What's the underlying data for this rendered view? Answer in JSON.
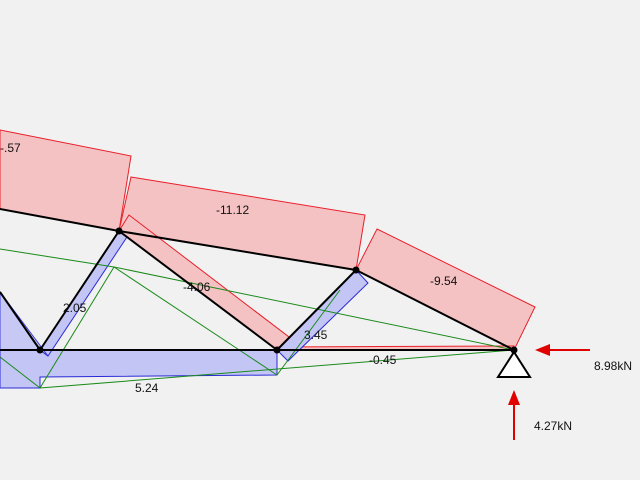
{
  "colors": {
    "background": "#f1f1f1",
    "compression_fill": "#f5c2c4",
    "compression_stroke": "#e8202a",
    "tension_fill": "#c3c5f5",
    "tension_stroke": "#2b2bd6",
    "deformed": "#1a8a1a",
    "member": "#000000",
    "reaction_arrow": "#e00000"
  },
  "members": {
    "top_chord_left": "-.57",
    "top_chord_mid": "-11.12",
    "top_chord_right": "-9.54",
    "diagonal_a": "2.05",
    "diagonal_b": "-4.06",
    "diagonal_c": "3.45",
    "bottom_chord_left": "5.24",
    "bottom_chord_right": "-0.45"
  },
  "support": {
    "type": "pin",
    "icon": "triangle-support-icon"
  },
  "reactions": {
    "horizontal": "8.98kN",
    "vertical": "4.27kN"
  }
}
